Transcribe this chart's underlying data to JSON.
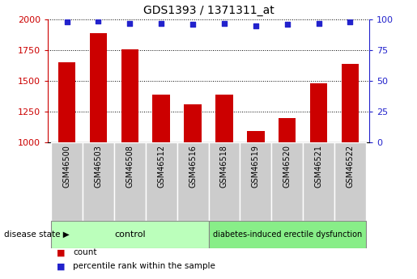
{
  "title": "GDS1393 / 1371311_at",
  "categories": [
    "GSM46500",
    "GSM46503",
    "GSM46508",
    "GSM46512",
    "GSM46516",
    "GSM46518",
    "GSM46519",
    "GSM46520",
    "GSM46521",
    "GSM46522"
  ],
  "counts": [
    1650,
    1890,
    1760,
    1390,
    1310,
    1390,
    1090,
    1200,
    1480,
    1640
  ],
  "percentile_ranks": [
    98,
    99,
    97,
    97,
    96,
    97,
    95,
    96,
    97,
    98
  ],
  "ylim_left": [
    1000,
    2000
  ],
  "ylim_right": [
    0,
    100
  ],
  "yticks_left": [
    1000,
    1250,
    1500,
    1750,
    2000
  ],
  "yticks_right": [
    0,
    25,
    50,
    75,
    100
  ],
  "bar_color": "#cc0000",
  "dot_color": "#2222cc",
  "bar_width": 0.55,
  "n_control": 5,
  "n_disease": 5,
  "control_label": "control",
  "disease_label": "diabetes-induced erectile dysfunction",
  "disease_state_label": "disease state",
  "legend_count_label": "count",
  "legend_percentile_label": "percentile rank within the sample",
  "control_color": "#bbffbb",
  "disease_color": "#88ee88",
  "tick_label_color_left": "#cc0000",
  "tick_label_color_right": "#2222cc",
  "grid_color": "#000000",
  "bg_color": "#ffffff",
  "xticklabel_bg": "#cccccc"
}
